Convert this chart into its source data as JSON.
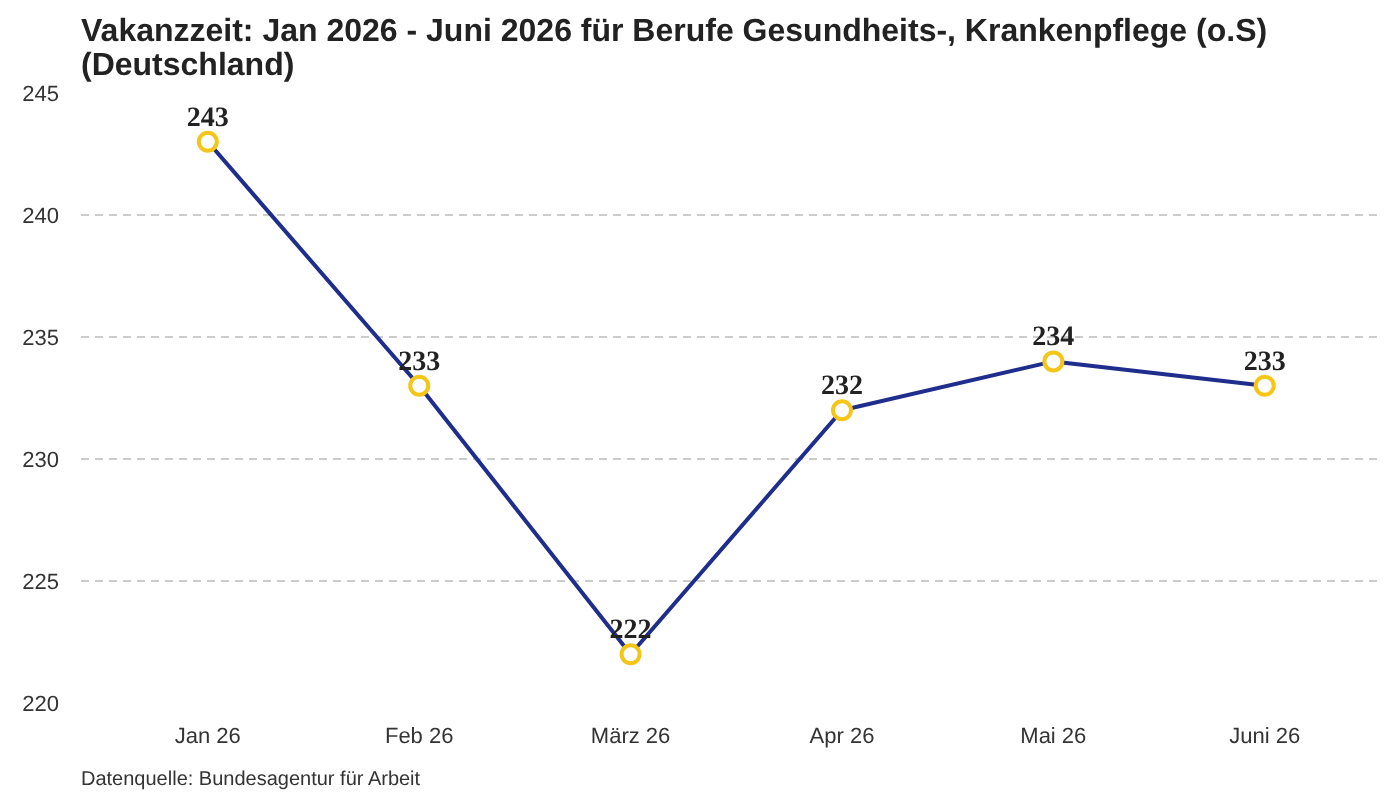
{
  "chart_data": {
    "type": "line",
    "title": "Vakanzzeit: Jan 2026 - Juni 2026 für Berufe Gesundheits-, Krankenpflege (o.S)\n(Deutschland)",
    "categories": [
      "Jan 26",
      "Feb 26",
      "März 26",
      "Apr 26",
      "Mai 26",
      "Juni 26"
    ],
    "series": [
      {
        "color": "#1f2d8c",
        "colors": [
          "#f5c518",
          "#f5c518",
          "#f5c518",
          "#f5c518",
          "#f5c518",
          "#f5c518"
        ],
        "values": [
          243,
          233,
          222,
          232,
          234,
          233
        ]
      }
    ],
    "marker": "circle",
    "data_labels": true,
    "ylim": [
      220,
      245
    ],
    "yticks": [
      220,
      225,
      230,
      235,
      240,
      245
    ],
    "grid": "y",
    "annotations": [
      "Datenquelle: Bundesagentur für Arbeit"
    ]
  }
}
